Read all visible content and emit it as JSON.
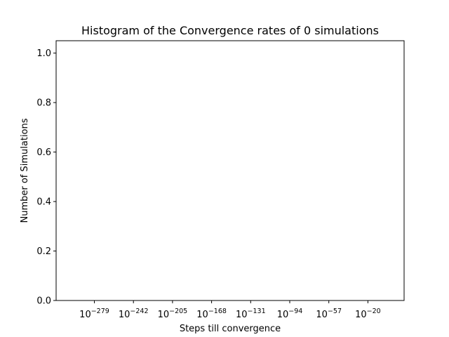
{
  "chart_data": {
    "type": "bar",
    "title": "Histogram of the Convergence rates of 0 simulations",
    "xlabel": "Steps till convergence",
    "ylabel": "Number of Simulations",
    "x_scale": "log",
    "ylim": [
      0,
      1.05
    ],
    "y_ticks": [
      "0.0",
      "0.2",
      "0.4",
      "0.6",
      "0.8",
      "1.0"
    ],
    "x_ticks": [
      {
        "base": "10",
        "exp": "−279"
      },
      {
        "base": "10",
        "exp": "−242"
      },
      {
        "base": "10",
        "exp": "−205"
      },
      {
        "base": "10",
        "exp": "−168"
      },
      {
        "base": "10",
        "exp": "−131"
      },
      {
        "base": "10",
        "exp": "−94"
      },
      {
        "base": "10",
        "exp": "−57"
      },
      {
        "base": "10",
        "exp": "−20"
      }
    ],
    "values": [],
    "grid": false,
    "legend": "none"
  }
}
